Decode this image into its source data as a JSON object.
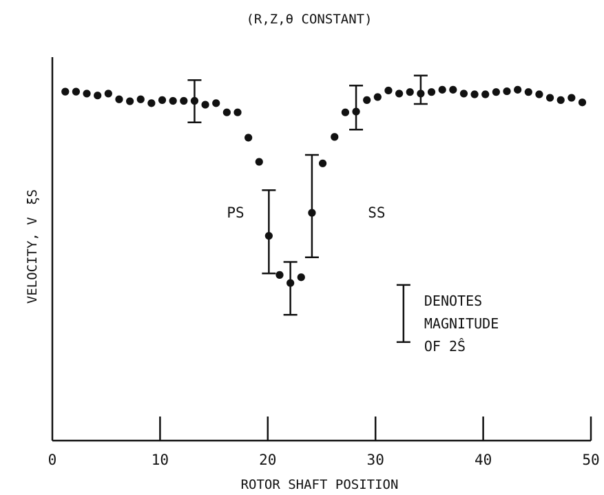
{
  "chart_data": {
    "type": "scatter",
    "title": "(R,Z,θ CONSTANT)",
    "xlabel": "ROTOR SHAFT POSITION",
    "ylabel": "VELOCITY, V",
    "ylabel_symbol": "ξS",
    "xlim": [
      0,
      50
    ],
    "ylim": [
      0,
      1
    ],
    "xticks": [
      0,
      10,
      20,
      30,
      40,
      50
    ],
    "y_ticks_labeled": false,
    "grid": false,
    "points": [
      {
        "x": 1.2,
        "y": 0.91
      },
      {
        "x": 2.2,
        "y": 0.91
      },
      {
        "x": 3.2,
        "y": 0.905
      },
      {
        "x": 4.2,
        "y": 0.9
      },
      {
        "x": 5.2,
        "y": 0.905
      },
      {
        "x": 6.2,
        "y": 0.89
      },
      {
        "x": 7.2,
        "y": 0.885
      },
      {
        "x": 8.2,
        "y": 0.89
      },
      {
        "x": 9.2,
        "y": 0.88
      },
      {
        "x": 10.2,
        "y": 0.888
      },
      {
        "x": 11.2,
        "y": 0.886
      },
      {
        "x": 12.2,
        "y": 0.886
      },
      {
        "x": 13.2,
        "y": 0.886
      },
      {
        "x": 14.2,
        "y": 0.876
      },
      {
        "x": 15.2,
        "y": 0.88
      },
      {
        "x": 16.2,
        "y": 0.856
      },
      {
        "x": 17.2,
        "y": 0.856
      },
      {
        "x": 18.2,
        "y": 0.79
      },
      {
        "x": 19.2,
        "y": 0.727
      },
      {
        "x": 20.1,
        "y": 0.534
      },
      {
        "x": 21.1,
        "y": 0.432
      },
      {
        "x": 22.1,
        "y": 0.411
      },
      {
        "x": 23.1,
        "y": 0.426
      },
      {
        "x": 24.1,
        "y": 0.594
      },
      {
        "x": 25.1,
        "y": 0.723
      },
      {
        "x": 26.2,
        "y": 0.792
      },
      {
        "x": 27.2,
        "y": 0.856
      },
      {
        "x": 28.2,
        "y": 0.858
      },
      {
        "x": 29.2,
        "y": 0.888
      },
      {
        "x": 30.2,
        "y": 0.896
      },
      {
        "x": 31.2,
        "y": 0.913
      },
      {
        "x": 32.2,
        "y": 0.905
      },
      {
        "x": 33.2,
        "y": 0.909
      },
      {
        "x": 34.2,
        "y": 0.905
      },
      {
        "x": 35.2,
        "y": 0.909
      },
      {
        "x": 36.2,
        "y": 0.915
      },
      {
        "x": 37.2,
        "y": 0.915
      },
      {
        "x": 38.2,
        "y": 0.905
      },
      {
        "x": 39.2,
        "y": 0.903
      },
      {
        "x": 40.2,
        "y": 0.903
      },
      {
        "x": 41.2,
        "y": 0.909
      },
      {
        "x": 42.2,
        "y": 0.911
      },
      {
        "x": 43.2,
        "y": 0.915
      },
      {
        "x": 44.2,
        "y": 0.909
      },
      {
        "x": 45.2,
        "y": 0.903
      },
      {
        "x": 46.2,
        "y": 0.894
      },
      {
        "x": 47.2,
        "y": 0.888
      },
      {
        "x": 48.2,
        "y": 0.894
      },
      {
        "x": 49.2,
        "y": 0.882
      }
    ],
    "error_bars": [
      {
        "x": 13.2,
        "y": 0.886,
        "low": 0.83,
        "high": 0.94
      },
      {
        "x": 20.1,
        "y": 0.534,
        "low": 0.436,
        "high": 0.653
      },
      {
        "x": 22.1,
        "y": 0.411,
        "low": 0.328,
        "high": 0.466
      },
      {
        "x": 24.1,
        "y": 0.594,
        "low": 0.478,
        "high": 0.745
      },
      {
        "x": 28.2,
        "y": 0.858,
        "low": 0.811,
        "high": 0.926
      },
      {
        "x": 34.2,
        "y": 0.905,
        "low": 0.878,
        "high": 0.952
      }
    ],
    "annotations": [
      {
        "text": "PS",
        "x": 16.2,
        "y": 0.594
      },
      {
        "text": "SS",
        "x": 29.3,
        "y": 0.594
      }
    ],
    "legend": {
      "placement": "bottom-right",
      "lines": [
        "DENOTES",
        "MAGNITUDE",
        "OF 2Ŝ"
      ],
      "bar_low": 0.257,
      "bar_high": 0.406,
      "bar_x": 32.6
    }
  }
}
